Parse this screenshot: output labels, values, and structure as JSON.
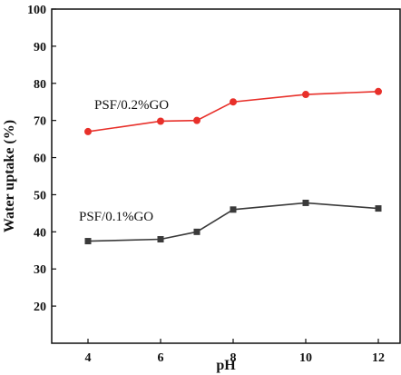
{
  "chart_data": {
    "type": "line",
    "xlabel": "pH",
    "ylabel": "Water uptake (%)",
    "xlim": [
      3,
      12.6
    ],
    "ylim": [
      10,
      100
    ],
    "xticks": [
      4,
      6,
      8,
      10,
      12
    ],
    "yticks": [
      20,
      30,
      40,
      50,
      60,
      70,
      80,
      90,
      100
    ],
    "grid": false,
    "x": [
      4,
      6,
      7,
      8,
      10,
      12
    ],
    "series": [
      {
        "name": "PSF/0.2%GO",
        "values": [
          67,
          69.8,
          70,
          75,
          77,
          77.8
        ],
        "color": "#e8302a",
        "marker": "circle"
      },
      {
        "name": "PSF/0.1%GO",
        "values": [
          37.5,
          38,
          40,
          46,
          47.8,
          46.3
        ],
        "color": "#3a3a3a",
        "marker": "square"
      }
    ]
  }
}
